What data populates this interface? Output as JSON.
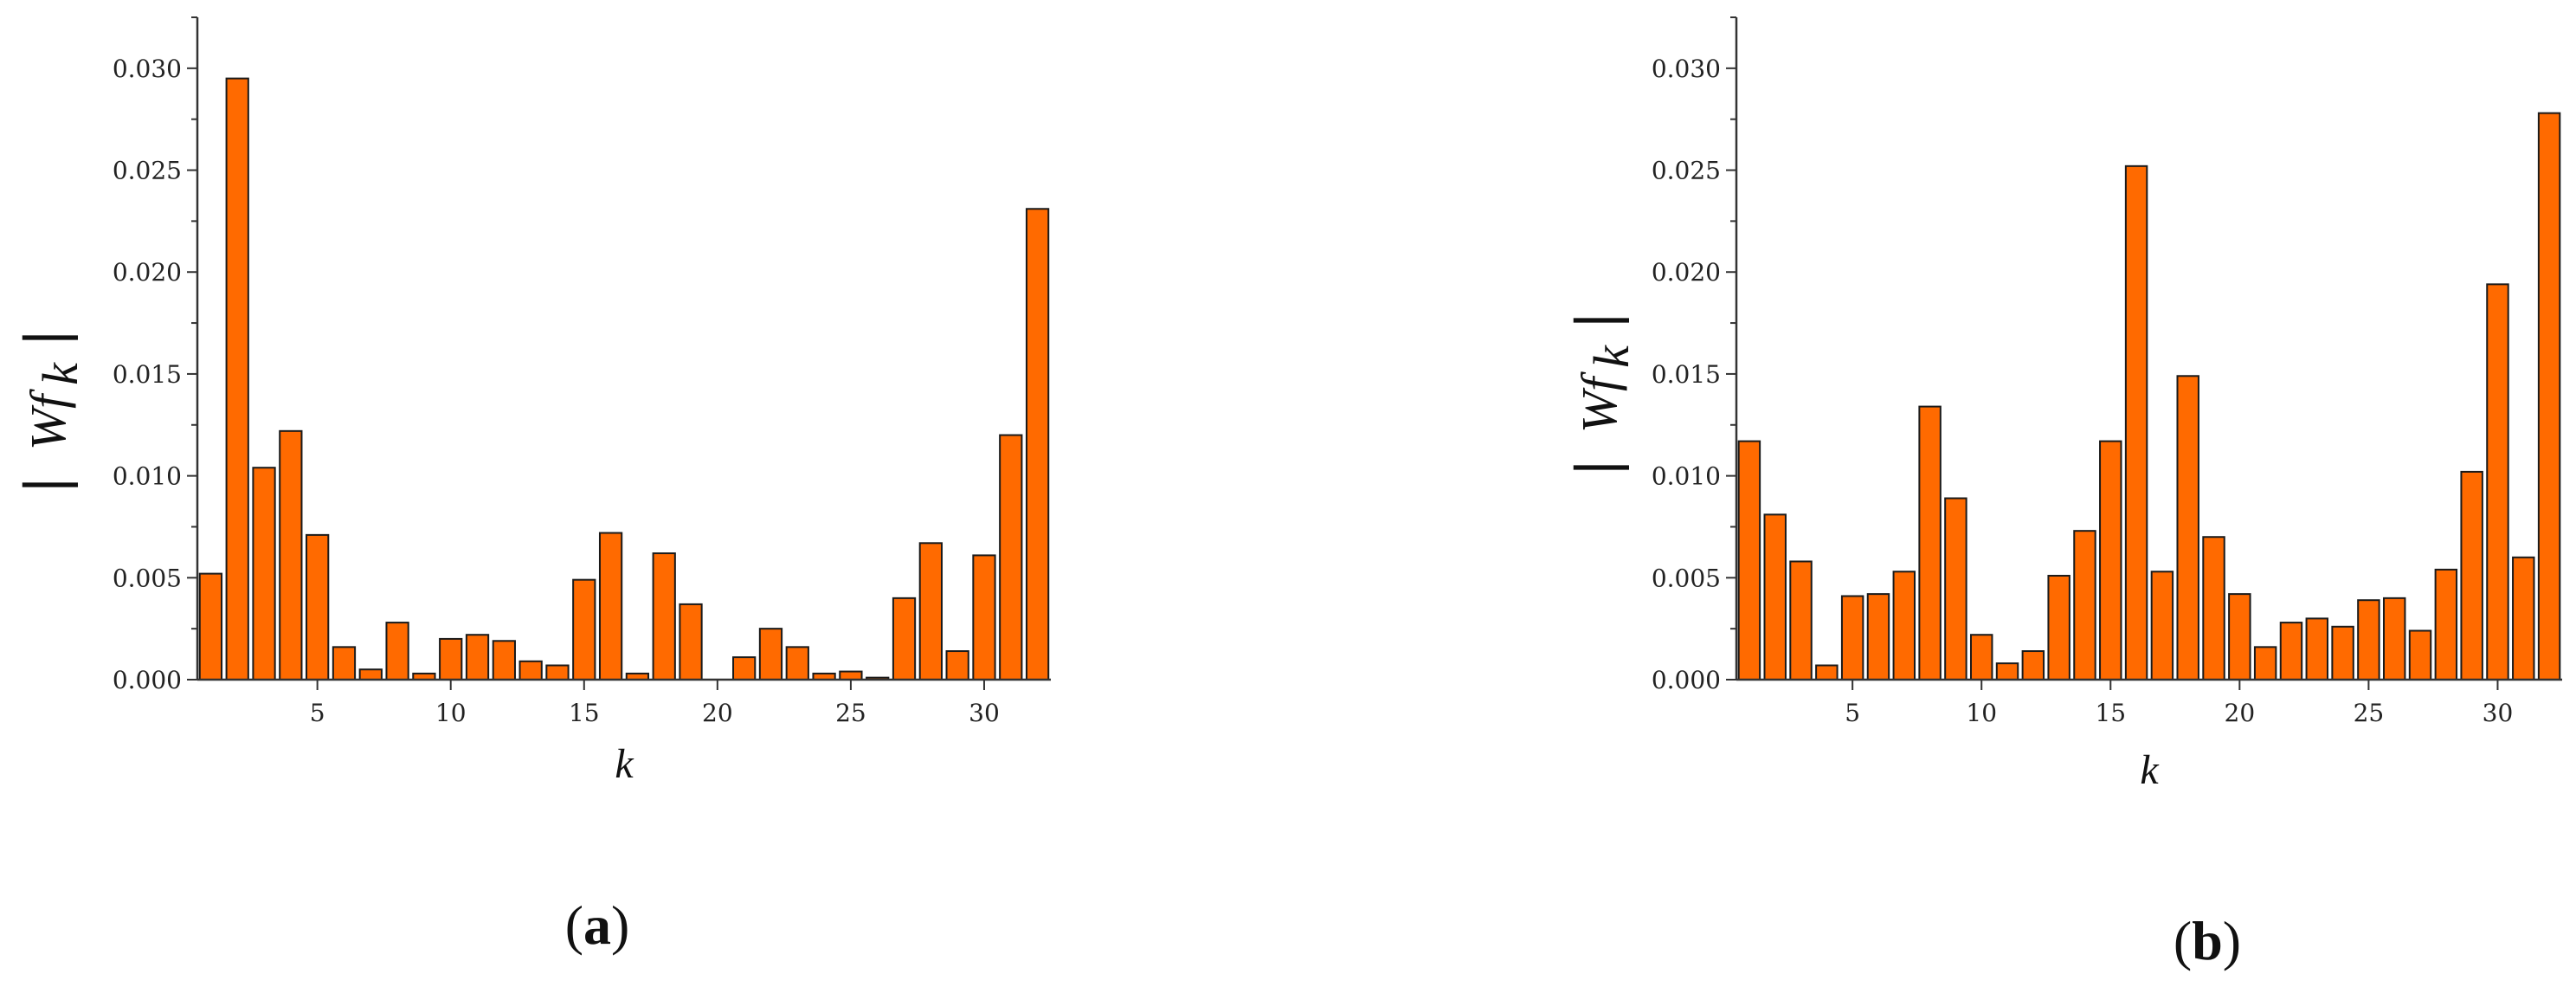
{
  "chart_data": [
    {
      "type": "bar",
      "panel_label": "(a)",
      "panel_letter": "a",
      "xlabel": "k",
      "ylabel": "|Wf_k|",
      "ylabel_main": "Wf",
      "ylabel_sub": "k",
      "xlim": [
        0.5,
        32.5
      ],
      "ylim": [
        0,
        0.0325
      ],
      "xticks": [
        5,
        10,
        15,
        20,
        25,
        30
      ],
      "yticks": [
        "0.000",
        "0.005",
        "0.010",
        "0.015",
        "0.020",
        "0.025",
        "0.030"
      ],
      "categories": [
        1,
        2,
        3,
        4,
        5,
        6,
        7,
        8,
        9,
        10,
        11,
        12,
        13,
        14,
        15,
        16,
        17,
        18,
        19,
        20,
        21,
        22,
        23,
        24,
        25,
        26,
        27,
        28,
        29,
        30,
        31,
        32
      ],
      "values": [
        0.0052,
        0.0295,
        0.0104,
        0.0122,
        0.0071,
        0.0016,
        0.0005,
        0.0028,
        0.0003,
        0.002,
        0.0022,
        0.0019,
        0.0009,
        0.0007,
        0.0049,
        0.0072,
        0.0003,
        0.0062,
        0.0037,
        0.0,
        0.0011,
        0.0025,
        0.0016,
        0.0003,
        0.0004,
        0.0001,
        0.004,
        0.0067,
        0.0014,
        0.0061,
        0.012,
        0.0231
      ],
      "grid": false
    },
    {
      "type": "bar",
      "panel_label": "(b)",
      "panel_letter": "b",
      "xlabel": "k",
      "ylabel": "|Wf_k|",
      "ylabel_main": "Wf",
      "ylabel_sub": "k",
      "xlim": [
        0.5,
        32.5
      ],
      "ylim": [
        0,
        0.0325
      ],
      "xticks": [
        5,
        10,
        15,
        20,
        25,
        30
      ],
      "yticks": [
        "0.000",
        "0.005",
        "0.010",
        "0.015",
        "0.020",
        "0.025",
        "0.030"
      ],
      "categories": [
        1,
        2,
        3,
        4,
        5,
        6,
        7,
        8,
        9,
        10,
        11,
        12,
        13,
        14,
        15,
        16,
        17,
        18,
        19,
        20,
        21,
        22,
        23,
        24,
        25,
        26,
        27,
        28,
        29,
        30,
        31,
        32
      ],
      "values": [
        0.0117,
        0.0081,
        0.0058,
        0.0007,
        0.0041,
        0.0042,
        0.0053,
        0.0134,
        0.0089,
        0.0022,
        0.0008,
        0.0014,
        0.0051,
        0.0073,
        0.0117,
        0.0252,
        0.0053,
        0.0149,
        0.007,
        0.0042,
        0.0016,
        0.0028,
        0.003,
        0.0026,
        0.0039,
        0.004,
        0.0024,
        0.0054,
        0.0102,
        0.0194,
        0.006,
        0.0278
      ],
      "grid": false
    }
  ]
}
